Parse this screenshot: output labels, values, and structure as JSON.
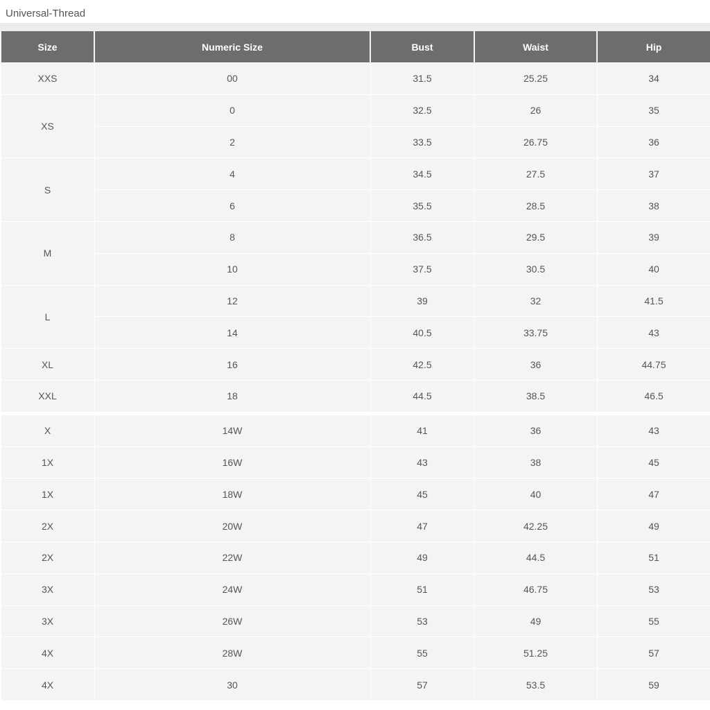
{
  "title": "Universal-Thread",
  "table": {
    "headers": [
      "Size",
      "Numeric Size",
      "Bust",
      "Waist",
      "Hip"
    ],
    "sections": [
      {
        "groups": [
          {
            "size": "XXS",
            "rows": [
              [
                "00",
                "31.5",
                "25.25",
                "34"
              ]
            ]
          },
          {
            "size": "XS",
            "rows": [
              [
                "0",
                "32.5",
                "26",
                "35"
              ],
              [
                "2",
                "33.5",
                "26.75",
                "36"
              ]
            ]
          },
          {
            "size": "S",
            "rows": [
              [
                "4",
                "34.5",
                "27.5",
                "37"
              ],
              [
                "6",
                "35.5",
                "28.5",
                "38"
              ]
            ]
          },
          {
            "size": "M",
            "rows": [
              [
                "8",
                "36.5",
                "29.5",
                "39"
              ],
              [
                "10",
                "37.5",
                "30.5",
                "40"
              ]
            ]
          },
          {
            "size": "L",
            "rows": [
              [
                "12",
                "39",
                "32",
                "41.5"
              ],
              [
                "14",
                "40.5",
                "33.75",
                "43"
              ]
            ]
          },
          {
            "size": "XL",
            "rows": [
              [
                "16",
                "42.5",
                "36",
                "44.75"
              ]
            ]
          },
          {
            "size": "XXL",
            "rows": [
              [
                "18",
                "44.5",
                "38.5",
                "46.5"
              ]
            ]
          }
        ]
      },
      {
        "groups": [
          {
            "size": "X",
            "rows": [
              [
                "14W",
                "41",
                "36",
                "43"
              ]
            ]
          },
          {
            "size": "1X",
            "rows": [
              [
                "16W",
                "43",
                "38",
                "45"
              ]
            ]
          },
          {
            "size": "1X",
            "rows": [
              [
                "18W",
                "45",
                "40",
                "47"
              ]
            ]
          },
          {
            "size": "2X",
            "rows": [
              [
                "20W",
                "47",
                "42.25",
                "49"
              ]
            ]
          },
          {
            "size": "2X",
            "rows": [
              [
                "22W",
                "49",
                "44.5",
                "51"
              ]
            ]
          },
          {
            "size": "3X",
            "rows": [
              [
                "24W",
                "51",
                "46.75",
                "53"
              ]
            ]
          },
          {
            "size": "3X",
            "rows": [
              [
                "26W",
                "53",
                "49",
                "55"
              ]
            ]
          },
          {
            "size": "4X",
            "rows": [
              [
                "28W",
                "55",
                "51.25",
                "57"
              ]
            ]
          },
          {
            "size": "4X",
            "rows": [
              [
                "30",
                "57",
                "53.5",
                "59"
              ]
            ]
          }
        ]
      }
    ]
  }
}
